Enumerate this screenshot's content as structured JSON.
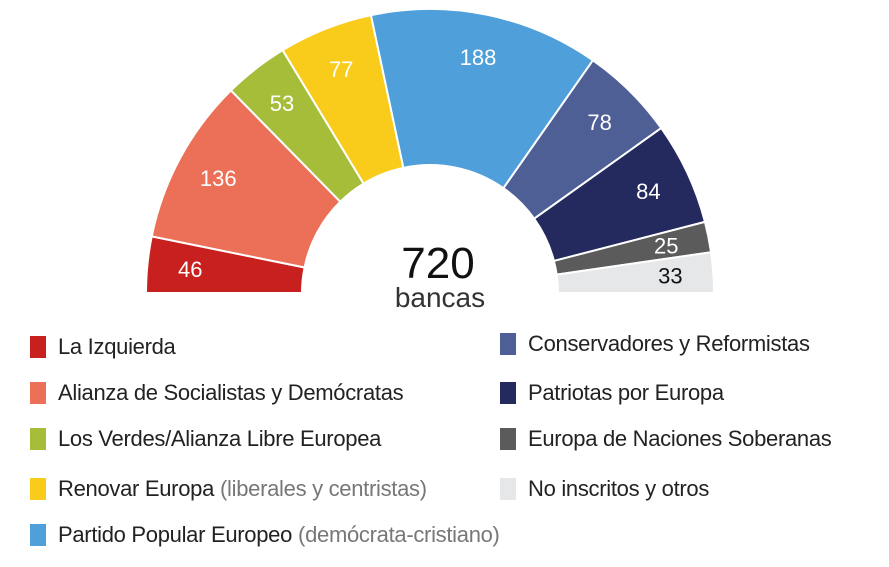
{
  "chart_data": {
    "type": "pie",
    "subtype": "half-donut parliament chart",
    "center_total": "720",
    "center_label": "bancas",
    "series": [
      {
        "name": "La Izquierda",
        "note": "",
        "value": 46,
        "color": "#c8201e",
        "label_color": "#ffffff"
      },
      {
        "name": "Alianza de Socialistas y Demócratas",
        "note": "",
        "value": 136,
        "color": "#ec7058",
        "label_color": "#ffffff"
      },
      {
        "name": "Los Verdes/Alianza Libre Europea",
        "note": "",
        "value": 53,
        "color": "#a6bd3a",
        "label_color": "#ffffff"
      },
      {
        "name": "Renovar Europa",
        "note": "(liberales y centristas)",
        "value": 77,
        "color": "#f9cb1b",
        "label_color": "#ffffff"
      },
      {
        "name": "Partido Popular Europeo",
        "note": "(demócrata-cristiano)",
        "value": 188,
        "color": "#4f9fdb",
        "label_color": "#ffffff"
      },
      {
        "name": "Conservadores y Reformistas",
        "note": "",
        "value": 78,
        "color": "#4e5f96",
        "label_color": "#ffffff"
      },
      {
        "name": "Patriotas por Europa",
        "note": "",
        "value": 84,
        "color": "#242a5e",
        "label_color": "#ffffff"
      },
      {
        "name": "Europa de Naciones Soberanas",
        "note": "",
        "value": 25,
        "color": "#5b5b5b",
        "label_color": "#ffffff"
      },
      {
        "name": "No inscritos y otros",
        "note": "",
        "value": 33,
        "color": "#e6e7e9",
        "label_color": "#111111"
      }
    ],
    "legend_placement": "bottom"
  }
}
